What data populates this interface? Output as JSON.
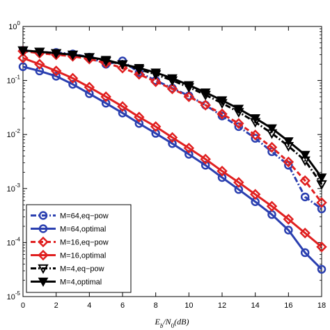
{
  "chart_data": {
    "type": "line",
    "title": "",
    "xlabel": "E_b/N_0(dB)",
    "xlabel_parts": {
      "main": "E",
      "sub1": "b",
      "mid": "/N",
      "sub2": "0",
      "tail": "(dB)"
    },
    "ylabel": "",
    "xlim": [
      0,
      18
    ],
    "ylim": [
      1e-05,
      1
    ],
    "yscale": "log",
    "grid": false,
    "legend_position": "bottom-left",
    "x_ticks": [
      "0",
      "2",
      "4",
      "6",
      "8",
      "10",
      "12",
      "14",
      "16",
      "18"
    ],
    "y_ticks": [
      {
        "base": "10",
        "exp": "0"
      },
      {
        "base": "10",
        "exp": "-1"
      },
      {
        "base": "10",
        "exp": "-2"
      },
      {
        "base": "10",
        "exp": "-3"
      },
      {
        "base": "10",
        "exp": "-4"
      },
      {
        "base": "10",
        "exp": "-5"
      }
    ],
    "x": [
      0,
      1,
      2,
      3,
      4,
      5,
      6,
      7,
      8,
      9,
      10,
      11,
      12,
      13,
      14,
      15,
      16,
      17,
      18
    ],
    "series": [
      {
        "name": "M=64,eq−pow",
        "color": "#2a3fb0",
        "dash": "dashdot",
        "marker": "circle",
        "values": [
          0.36,
          0.33,
          0.33,
          0.31,
          0.27,
          0.2,
          0.23,
          0.14,
          0.1,
          0.072,
          0.052,
          0.035,
          0.022,
          0.014,
          0.0085,
          0.0048,
          0.0027,
          0.0007,
          0.00042
        ]
      },
      {
        "name": "M=64,optimal",
        "color": "#2a3fb0",
        "dash": "solid",
        "marker": "circle",
        "values": [
          0.18,
          0.15,
          0.12,
          0.085,
          0.057,
          0.038,
          0.025,
          0.016,
          0.0105,
          0.0068,
          0.0043,
          0.0027,
          0.0016,
          0.00096,
          0.00057,
          0.00033,
          0.00017,
          6.5e-05,
          3.2e-05
        ]
      },
      {
        "name": "M=16,eq−pow",
        "color": "#e02020",
        "dash": "dashed",
        "marker": "diamond",
        "values": [
          0.35,
          0.32,
          0.3,
          0.28,
          0.25,
          0.21,
          0.17,
          0.13,
          0.095,
          0.07,
          0.05,
          0.035,
          0.024,
          0.016,
          0.0098,
          0.0058,
          0.0031,
          0.0014,
          0.00055
        ]
      },
      {
        "name": "M=16,optimal",
        "color": "#e02020",
        "dash": "solid",
        "marker": "diamond",
        "values": [
          0.26,
          0.2,
          0.15,
          0.11,
          0.075,
          0.05,
          0.033,
          0.021,
          0.014,
          0.0088,
          0.0056,
          0.0035,
          0.0021,
          0.0013,
          0.00078,
          0.00047,
          0.00027,
          0.00015,
          8.3e-05
        ]
      },
      {
        "name": "M=4,eq−pow",
        "color": "#000000",
        "dash": "dashdot",
        "marker": "triangle-open",
        "values": [
          0.36,
          0.34,
          0.32,
          0.3,
          0.27,
          0.23,
          0.2,
          0.16,
          0.13,
          0.1,
          0.075,
          0.054,
          0.038,
          0.026,
          0.017,
          0.0105,
          0.0061,
          0.0033,
          0.0012
        ]
      },
      {
        "name": "M=4,optimal",
        "color": "#000000",
        "dash": "solid",
        "marker": "triangle-filled",
        "values": [
          0.36,
          0.34,
          0.32,
          0.3,
          0.27,
          0.24,
          0.2,
          0.17,
          0.14,
          0.11,
          0.082,
          0.06,
          0.043,
          0.03,
          0.02,
          0.013,
          0.0075,
          0.0042,
          0.0016
        ]
      }
    ]
  }
}
